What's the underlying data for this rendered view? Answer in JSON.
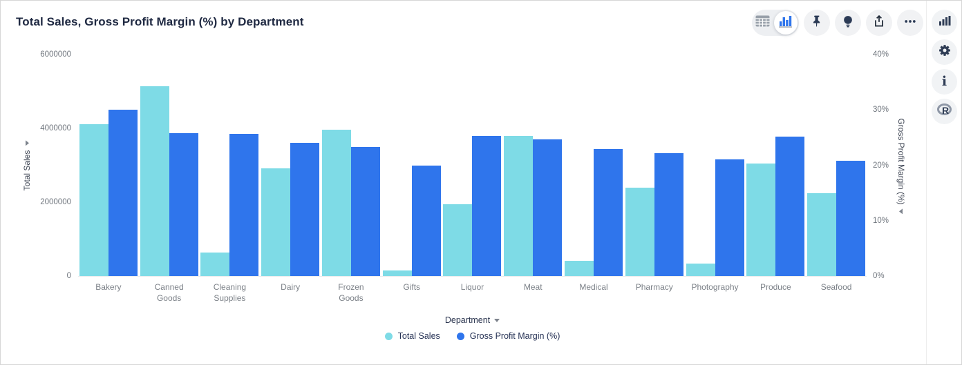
{
  "header": {
    "title": "Total Sales, Gross Profit Margin (%) by Department"
  },
  "toolbar": {
    "view_toggle": {
      "options": [
        "table-view",
        "chart-view"
      ],
      "selected": "chart-view"
    },
    "buttons": [
      "pin",
      "lightbulb",
      "share",
      "more-options"
    ]
  },
  "side_rail": {
    "buttons": [
      "chart-type",
      "settings",
      "info",
      "r-script"
    ]
  },
  "chart_data": {
    "type": "bar",
    "title": "Total Sales, Gross Profit Margin (%) by Department",
    "categories": [
      "Bakery",
      "Canned Goods",
      "Cleaning Supplies",
      "Dairy",
      "Frozen Goods",
      "Gifts",
      "Liquor",
      "Meat",
      "Medical",
      "Pharmacy",
      "Photography",
      "Produce",
      "Seafood"
    ],
    "series": [
      {
        "name": "Total Sales",
        "axis": "left",
        "color": "#7EDBE6",
        "values": [
          4120000,
          5140000,
          640000,
          2910000,
          3960000,
          150000,
          1950000,
          3790000,
          420000,
          2390000,
          330000,
          3040000,
          2250000
        ]
      },
      {
        "name": "Gross Profit Margin (%)",
        "axis": "right",
        "color": "#2F75EC",
        "values": [
          30,
          25.8,
          25.7,
          24.1,
          23.3,
          19.9,
          25.3,
          24.7,
          22.9,
          22.2,
          21.1,
          25.2,
          20.8
        ]
      }
    ],
    "left_axis": {
      "label": "Total Sales",
      "max": 6000000,
      "ticks": [
        "6000000",
        "4000000",
        "2000000",
        "0"
      ]
    },
    "right_axis": {
      "label": "Gross Profit Margin (%)",
      "max": 40,
      "ticks": [
        "40%",
        "30%",
        "20%",
        "10%",
        "0%"
      ]
    },
    "x_axis": {
      "label": "Department"
    },
    "legend": [
      {
        "label": "Total Sales",
        "color": "#7EDBE6"
      },
      {
        "label": "Gross Profit Margin (%)",
        "color": "#2F75EC"
      }
    ],
    "grid": false,
    "legend_position": "bottom"
  },
  "colors": {
    "series_total_sales": "#7EDBE6",
    "series_gpm": "#2F75EC",
    "icon_navy": "#2B3A55",
    "tick_gray": "#6E747C"
  }
}
